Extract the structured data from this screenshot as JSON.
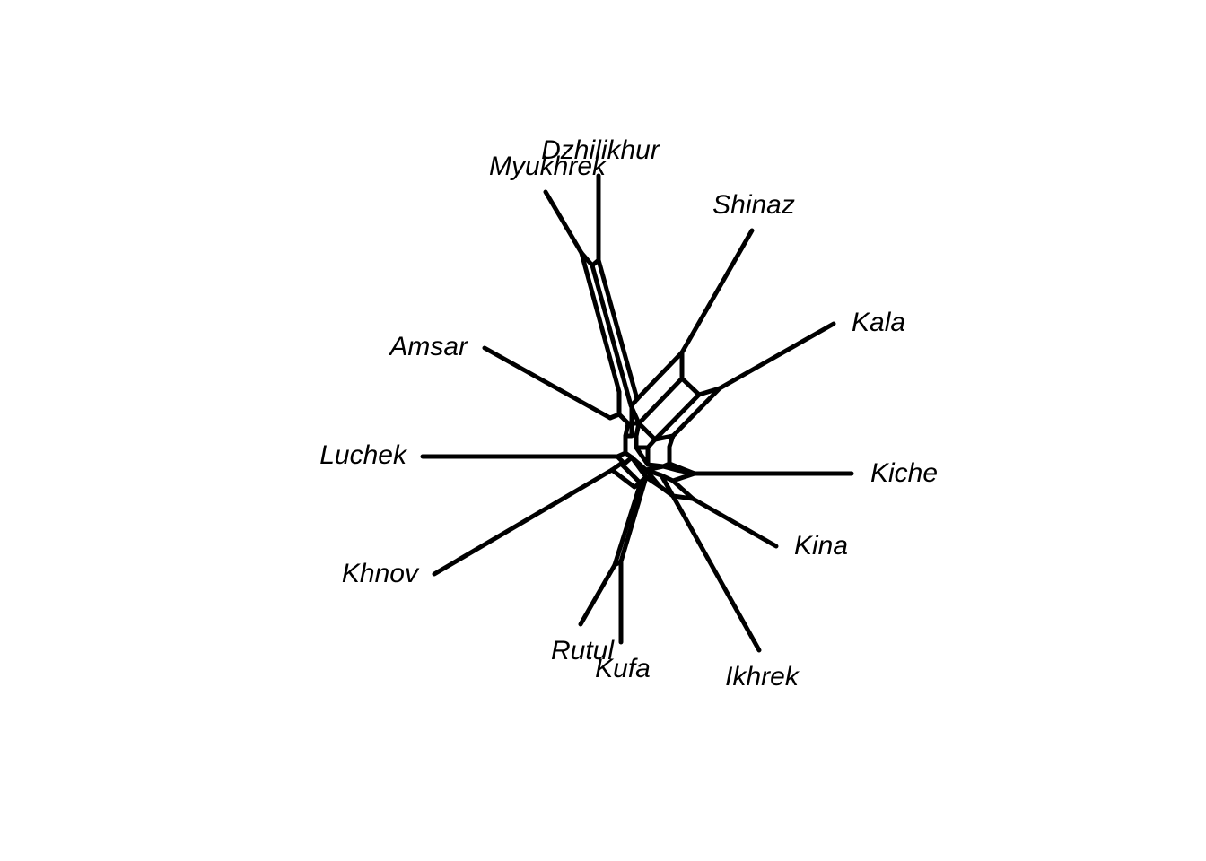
{
  "network": {
    "taxa": [
      {
        "id": "dzhilikhur",
        "label": "Dzhilikhur"
      },
      {
        "id": "myukhrek",
        "label": "Myukhrek"
      },
      {
        "id": "shinaz",
        "label": "Shinaz"
      },
      {
        "id": "kala",
        "label": "Kala"
      },
      {
        "id": "amsar",
        "label": "Amsar"
      },
      {
        "id": "luchek",
        "label": "Luchek"
      },
      {
        "id": "kiche",
        "label": "Kiche"
      },
      {
        "id": "kina",
        "label": "Kina"
      },
      {
        "id": "khnov",
        "label": "Khnov"
      },
      {
        "id": "rutul",
        "label": "Rutul"
      },
      {
        "id": "kufa",
        "label": "Kufa"
      },
      {
        "id": "ikhrek",
        "label": "Ikhrek"
      }
    ],
    "colors": {
      "line": "#000000",
      "background": "#ffffff"
    }
  }
}
